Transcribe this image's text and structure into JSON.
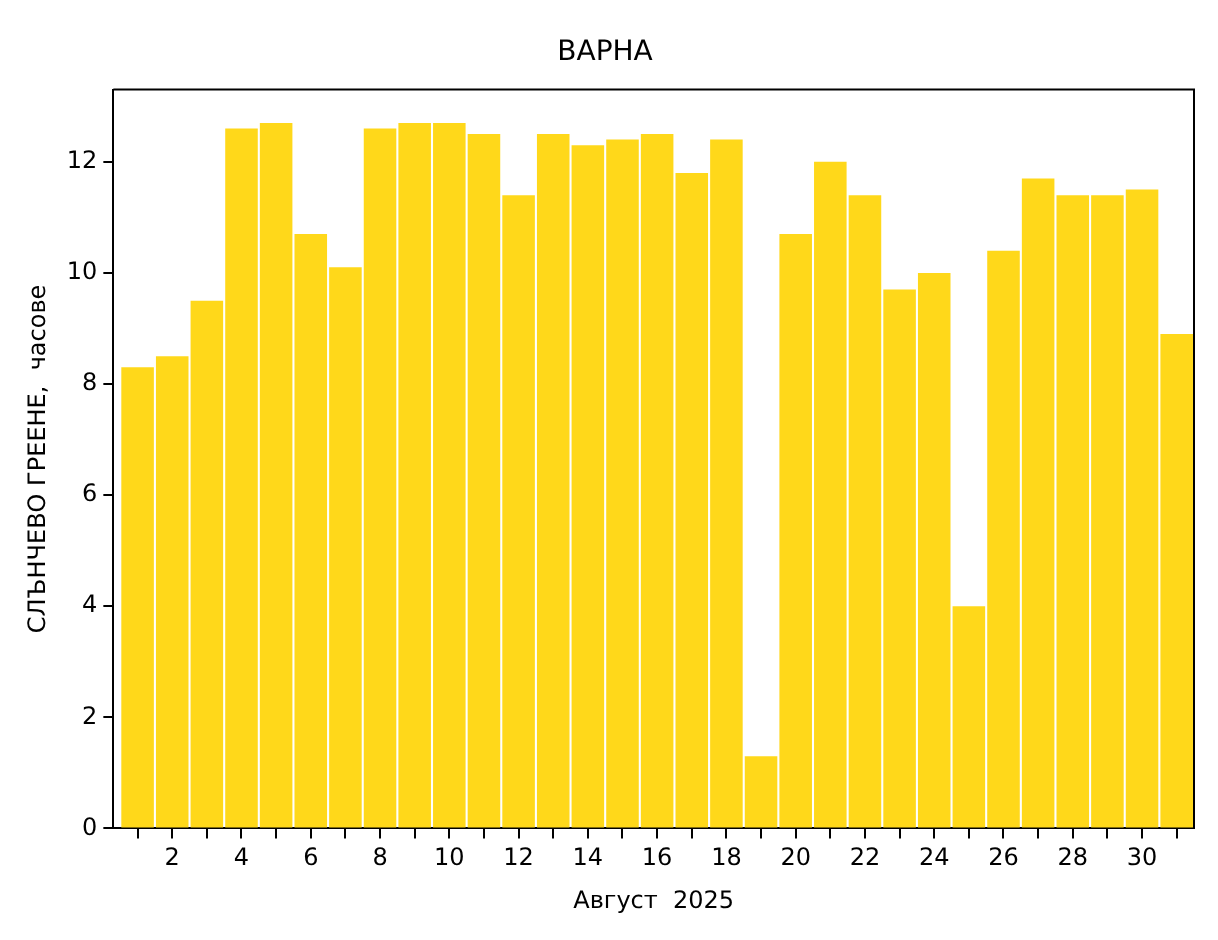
{
  "chart_data": {
    "type": "bar",
    "title": "ВАРНА",
    "xlabel": "Август  2025",
    "ylabel": "СЛЪНЧЕВО ГРЕЕНЕ,  часове",
    "x": [
      1,
      2,
      3,
      4,
      5,
      6,
      7,
      8,
      9,
      10,
      11,
      12,
      13,
      14,
      15,
      16,
      17,
      18,
      19,
      20,
      21,
      22,
      23,
      24,
      25,
      26,
      27,
      28,
      29,
      30,
      31
    ],
    "values": [
      8.3,
      8.5,
      9.5,
      12.6,
      12.7,
      10.7,
      10.1,
      12.6,
      12.7,
      12.7,
      12.5,
      11.4,
      12.5,
      12.3,
      12.4,
      12.5,
      11.8,
      12.4,
      1.3,
      10.7,
      12.0,
      11.4,
      9.7,
      10.0,
      4.0,
      10.4,
      11.7,
      11.4,
      11.4,
      11.5,
      8.9
    ],
    "color": "#ffd81a",
    "xlim": [
      0.3,
      31.5
    ],
    "xticks": [
      {
        "value": 1,
        "label": null
      },
      2,
      {
        "value": 3,
        "label": null
      },
      4,
      {
        "value": 5,
        "label": null
      },
      6,
      {
        "value": 7,
        "label": null
      },
      8,
      {
        "value": 9,
        "label": null
      },
      10,
      {
        "value": 11,
        "label": null
      },
      12,
      {
        "value": 13,
        "label": null
      },
      14,
      {
        "value": 15,
        "label": null
      },
      16,
      {
        "value": 17,
        "label": null
      },
      18,
      {
        "value": 19,
        "label": null
      },
      20,
      {
        "value": 21,
        "label": null
      },
      22,
      {
        "value": 23,
        "label": null
      },
      24,
      {
        "value": 25,
        "label": null
      },
      26,
      {
        "value": 27,
        "label": null
      },
      28,
      {
        "value": 29,
        "label": null
      },
      30,
      {
        "value": 31,
        "label": null
      }
    ],
    "ylim": [
      0,
      13.3
    ],
    "yticks": [
      0,
      2,
      4,
      6,
      8,
      10,
      12
    ],
    "grid": false,
    "legend": false
  }
}
